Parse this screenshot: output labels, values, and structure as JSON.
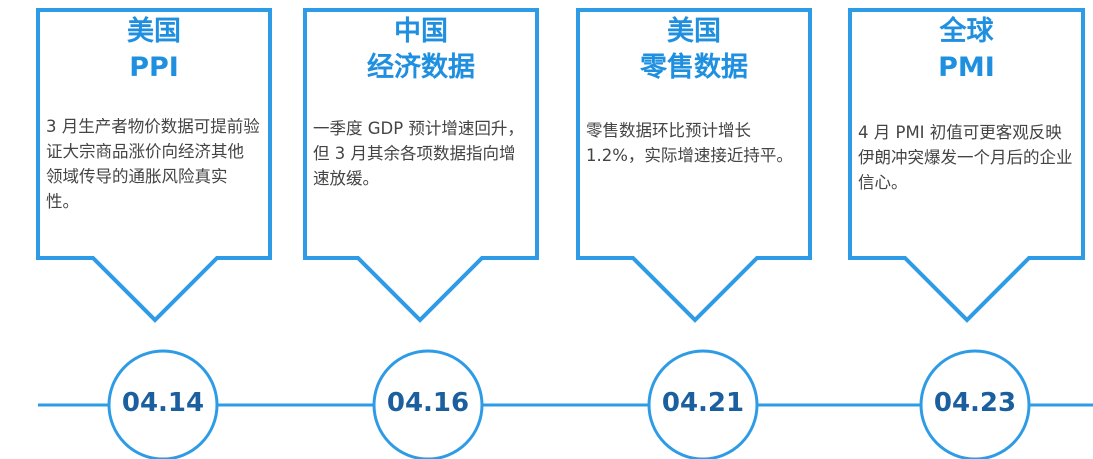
{
  "items": [
    {
      "title": [
        "美国",
        "PPI"
      ],
      "body": "3 月生产者物价数据可提前验证大宗商品涨价向经济其他领域传导的通胀风险真实性。",
      "date": "04.14"
    },
    {
      "title": [
        "中国",
        "经济数据"
      ],
      "body": "一季度 GDP 预计增速回升，但 3 月其余各项数据指向增速放缓。",
      "date": "04.16"
    },
    {
      "title": [
        "美国",
        "零售数据"
      ],
      "body": "零售数据环比预计增长 1.2%，实际增速接近持平。",
      "date": "04.21"
    },
    {
      "title": [
        "全球",
        "PMI"
      ],
      "body": "4 月 PMI 初值可更客观反映伊朗冲突爆发一个月后的企业信心。",
      "date": "04.23"
    }
  ]
}
